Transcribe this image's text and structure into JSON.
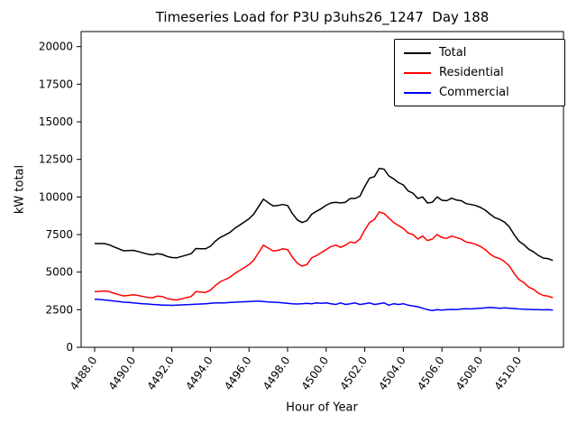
{
  "chart_data": {
    "type": "line",
    "title": "Timeseries Load for P3U p3uhs26_1247  Day 188",
    "xlabel": "Hour of Year",
    "ylabel": "kW total",
    "xlim": [
      4487.3,
      4512.3
    ],
    "ylim": [
      0,
      21000
    ],
    "xtick_labels": [
      "4488.0",
      "4490.0",
      "4492.0",
      "4494.0",
      "4496.0",
      "4498.0",
      "4500.0",
      "4502.0",
      "4504.0",
      "4506.0",
      "4508.0",
      "4510.0"
    ],
    "yticks": [
      0,
      2500,
      5000,
      7500,
      10000,
      12500,
      15000,
      17500,
      20000
    ],
    "legend_position": "upper right",
    "grid": false,
    "x_start": 4488.0,
    "x_step": 0.25,
    "series": [
      {
        "name": "Total",
        "color": "#000000",
        "values": [
          6900,
          6900,
          6900,
          6820,
          6680,
          6550,
          6420,
          6430,
          6450,
          6370,
          6280,
          6200,
          6150,
          6230,
          6180,
          6050,
          5970,
          5950,
          6040,
          6130,
          6230,
          6570,
          6560,
          6550,
          6720,
          7050,
          7300,
          7460,
          7630,
          7900,
          8120,
          8330,
          8550,
          8860,
          9370,
          9850,
          9620,
          9400,
          9430,
          9500,
          9430,
          8900,
          8480,
          8300,
          8420,
          8850,
          9050,
          9220,
          9450,
          9600,
          9650,
          9600,
          9650,
          9900,
          9900,
          10050,
          10700,
          11250,
          11350,
          11900,
          11850,
          11400,
          11200,
          10950,
          10800,
          10400,
          10250,
          9900,
          10000,
          9600,
          9650,
          10000,
          9780,
          9750,
          9920,
          9800,
          9750,
          9560,
          9500,
          9430,
          9300,
          9120,
          8850,
          8620,
          8500,
          8320,
          8000,
          7480,
          7050,
          6830,
          6520,
          6350,
          6110,
          5940,
          5900,
          5780
        ]
      },
      {
        "name": "Residential",
        "color": "#ff0000",
        "values": [
          3700,
          3720,
          3750,
          3700,
          3600,
          3500,
          3420,
          3450,
          3500,
          3450,
          3380,
          3320,
          3300,
          3400,
          3380,
          3250,
          3180,
          3150,
          3220,
          3300,
          3380,
          3700,
          3680,
          3650,
          3800,
          4100,
          4350,
          4500,
          4650,
          4900,
          5100,
          5300,
          5500,
          5800,
          6300,
          6800,
          6600,
          6400,
          6450,
          6550,
          6500,
          6000,
          5600,
          5400,
          5500,
          5950,
          6100,
          6300,
          6500,
          6700,
          6800,
          6650,
          6800,
          7000,
          6950,
          7200,
          7800,
          8300,
          8500,
          9000,
          8900,
          8600,
          8300,
          8100,
          7900,
          7600,
          7500,
          7200,
          7400,
          7100,
          7200,
          7500,
          7300,
          7250,
          7400,
          7300,
          7200,
          7000,
          6950,
          6850,
          6700,
          6500,
          6200,
          6000,
          5900,
          5700,
          5400,
          4900,
          4500,
          4300,
          4000,
          3850,
          3600,
          3450,
          3400,
          3300
        ]
      },
      {
        "name": "Commercial",
        "color": "#0000ff",
        "values": [
          3200,
          3180,
          3150,
          3120,
          3080,
          3050,
          3000,
          2980,
          2950,
          2920,
          2900,
          2880,
          2850,
          2830,
          2800,
          2800,
          2790,
          2800,
          2820,
          2830,
          2850,
          2870,
          2880,
          2900,
          2920,
          2950,
          2950,
          2960,
          2980,
          3000,
          3020,
          3030,
          3050,
          3060,
          3070,
          3050,
          3020,
          3000,
          2980,
          2950,
          2930,
          2900,
          2880,
          2900,
          2920,
          2900,
          2950,
          2920,
          2950,
          2900,
          2850,
          2950,
          2850,
          2900,
          2950,
          2850,
          2900,
          2950,
          2850,
          2900,
          2950,
          2800,
          2900,
          2850,
          2900,
          2800,
          2750,
          2700,
          2600,
          2500,
          2450,
          2500,
          2480,
          2500,
          2520,
          2500,
          2550,
          2560,
          2550,
          2580,
          2600,
          2620,
          2650,
          2620,
          2600,
          2620,
          2600,
          2580,
          2550,
          2530,
          2520,
          2500,
          2510,
          2490,
          2500,
          2480
        ]
      }
    ]
  }
}
